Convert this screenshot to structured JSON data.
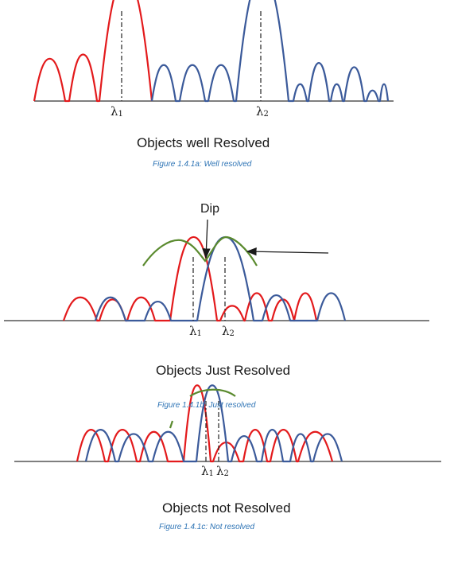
{
  "colors": {
    "red": "#e31a1c",
    "blue": "#3b5a9a",
    "green": "#5a8a2e",
    "axis": "#333333",
    "caption": "#2e74b5"
  },
  "panels": [
    {
      "id": "a",
      "title": "Objects well Resolved",
      "caption": "Figure 1.4.1a: Well resolved",
      "lambda1": "λ",
      "lambda1_sub": "1",
      "lambda2": "λ",
      "lambda2_sub": "2"
    },
    {
      "id": "b",
      "title": "Objects Just Resolved",
      "caption": "Figure 1.4.1b: Just resolved",
      "annotation": "Dip",
      "lambda1": "λ",
      "lambda1_sub": "1",
      "lambda2": "λ",
      "lambda2_sub": "2"
    },
    {
      "id": "c",
      "title": "Objects not Resolved",
      "caption": "Figure 1.4.1c: Not resolved",
      "lambda1": "λ",
      "lambda1_sub": "1",
      "lambda2": "λ",
      "lambda2_sub": "2"
    }
  ]
}
